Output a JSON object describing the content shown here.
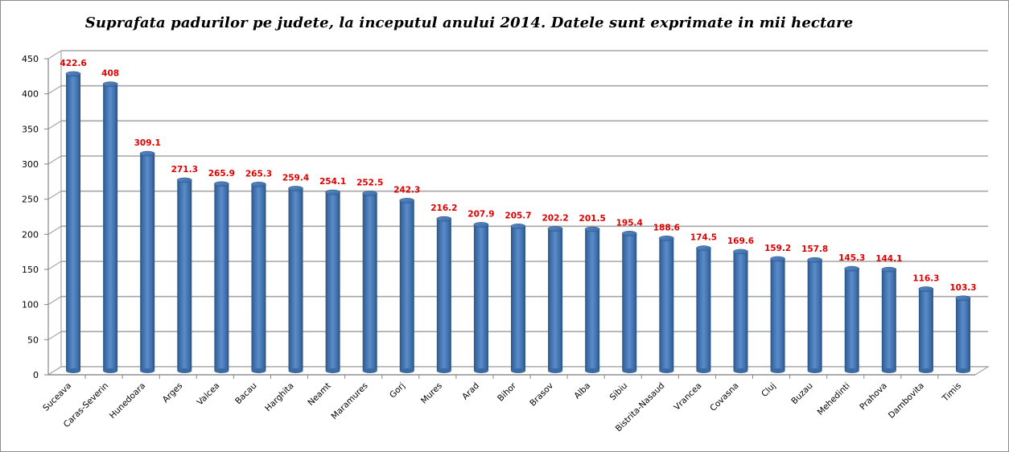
{
  "chart_data": {
    "type": "bar",
    "style": "3d-cylinder",
    "title": "Suprafata padurilor pe judete, la inceputul anului 2014. Datele sunt exprimate in mii hectare",
    "xlabel": "",
    "ylabel": "",
    "ylim": [
      0,
      450
    ],
    "yticks": [
      0,
      50,
      100,
      150,
      200,
      250,
      300,
      350,
      400,
      450
    ],
    "grid": true,
    "legend": "none",
    "categories": [
      "Suceava",
      "Caras-Severin",
      "Hunedoara",
      "Arges",
      "Valcea",
      "Bacau",
      "Harghita",
      "Neamt",
      "Maramures",
      "Gorj",
      "Mures",
      "Arad",
      "Bihor",
      "Brasov",
      "Alba",
      "Sibiu",
      "Bistrita-Nasaud",
      "Vrancea",
      "Covasna",
      "Cluj",
      "Buzau",
      "Mehedinti",
      "Prahova",
      "Dambovita",
      "Timis"
    ],
    "values": [
      422.6,
      408,
      309.1,
      271.3,
      265.9,
      265.3,
      259.4,
      254.1,
      252.5,
      242.3,
      216.2,
      207.9,
      205.7,
      202.2,
      201.5,
      195.4,
      188.6,
      174.5,
      169.6,
      159.2,
      157.8,
      145.3,
      144.1,
      116.3,
      103.3
    ],
    "data_labels": [
      "422.6",
      "408",
      "309.1",
      "271.3",
      "265.9",
      "265.3",
      "259.4",
      "254.1",
      "252.5",
      "242.3",
      "216.2",
      "207.9",
      "205.7",
      "202.2",
      "201.5",
      "195.4",
      "188.6",
      "174.5",
      "169.6",
      "159.2",
      "157.8",
      "145.3",
      "144.1",
      "116.3",
      "103.3"
    ],
    "colors": {
      "bar": "#4f81bd",
      "bar_dark": "#2c5686",
      "bar_light": "#7aa4d8",
      "data_label": "#e00000",
      "grid": "#a6a6a6",
      "axis": "#868686"
    }
  }
}
